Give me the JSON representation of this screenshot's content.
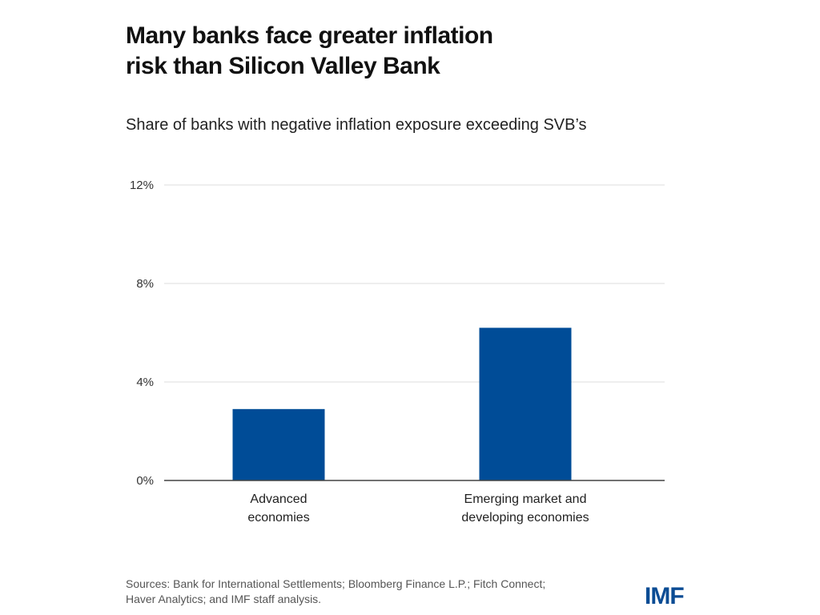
{
  "title_line1": "Many banks face greater inflation",
  "title_line2": "risk than Silicon Valley Bank",
  "source_line1": "Sources: Bank for International Settlements; Bloomberg Finance L.P.; Fitch Connect;",
  "source_line2": "Haver Analytics; and IMF staff analysis.",
  "logo": "IMF",
  "chart_data": {
    "type": "bar",
    "title": "Share of banks with negative inflation exposure exceeding SVB’s",
    "categories": [
      [
        "Advanced",
        "economies"
      ],
      [
        "Emerging market and",
        "developing economies"
      ]
    ],
    "values": [
      2.9,
      6.2
    ],
    "ylim": [
      0,
      12
    ],
    "yticks": [
      0,
      4,
      8,
      12
    ],
    "ytick_labels": [
      "0%",
      "4%",
      "8%",
      "12%"
    ],
    "xlabel": "",
    "ylabel": "",
    "grid": true,
    "bar_color": "#004c97"
  }
}
